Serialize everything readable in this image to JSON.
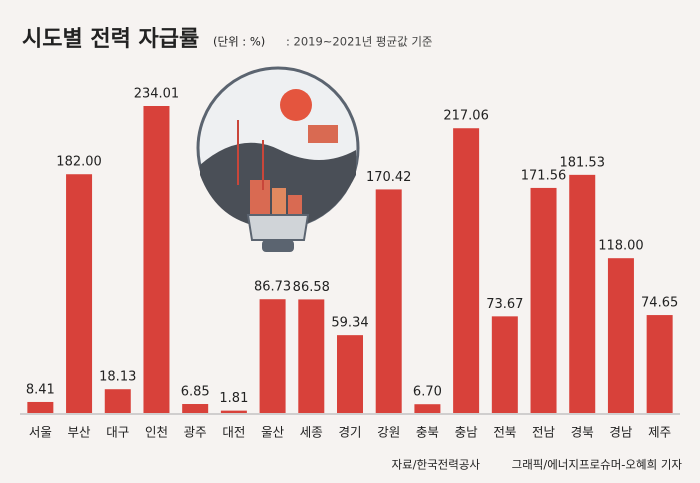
{
  "chart_data": {
    "type": "bar",
    "title": "시도별 전력 자급률",
    "subtitle": "(단위 : %)",
    "note": ": 2019~2021년 평균값 기준",
    "source": "자료/한국전력공사",
    "credit": "그래픽/에너지프로슈머-오혜희 기자",
    "categories": [
      "서울",
      "부산",
      "대구",
      "인천",
      "광주",
      "대전",
      "울산",
      "세종",
      "경기",
      "강원",
      "충북",
      "충남",
      "전북",
      "전남",
      "경북",
      "경남",
      "제주"
    ],
    "values": [
      8.41,
      182.0,
      18.13,
      234.01,
      6.85,
      1.81,
      86.73,
      86.58,
      59.34,
      170.42,
      6.7,
      217.06,
      73.67,
      171.56,
      181.53,
      118.0,
      74.65
    ],
    "value_labels": [
      "8.41",
      "182.00",
      "18.13",
      "234.01",
      "6.85",
      "1.81",
      "86.73",
      "86.58",
      "59.34",
      "170.42",
      "6.70",
      "217.06",
      "73.67",
      "171.56",
      "181.53",
      "118.00",
      "74.65"
    ],
    "color": "#d8413a"
  }
}
